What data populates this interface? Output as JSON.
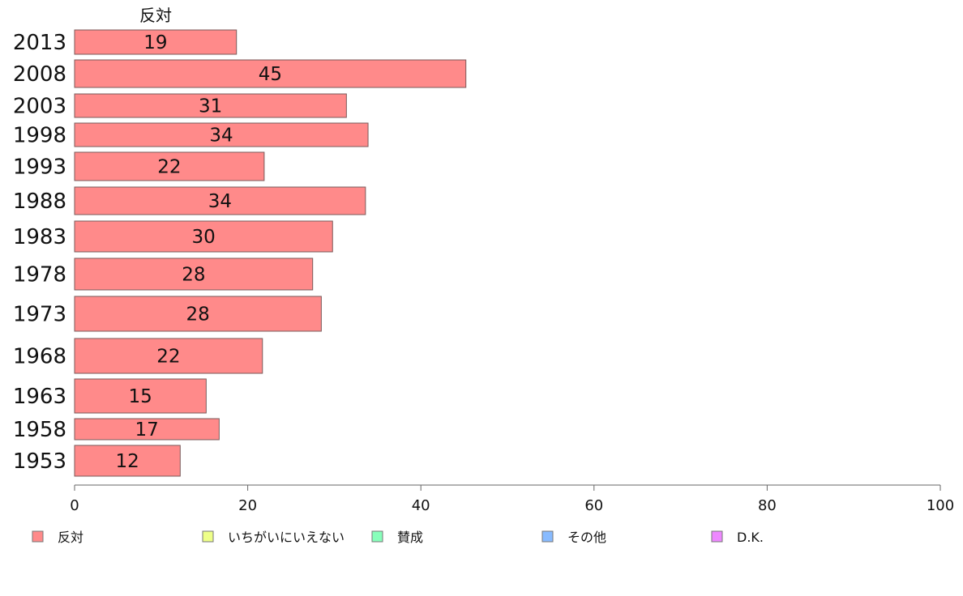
{
  "chart_data": {
    "type": "bar",
    "orientation": "horizontal",
    "series_title": "反対",
    "categories": [
      "2013",
      "2008",
      "2003",
      "1998",
      "1993",
      "1988",
      "1983",
      "1978",
      "1973",
      "1968",
      "1963",
      "1958",
      "1953"
    ],
    "values": [
      18.7,
      45.2,
      31.4,
      33.9,
      21.9,
      33.6,
      29.8,
      27.5,
      28.5,
      21.7,
      15.2,
      16.7,
      12.2
    ],
    "value_labels": [
      "19",
      "45",
      "31",
      "34",
      "22",
      "34",
      "30",
      "28",
      "28",
      "22",
      "15",
      "17",
      "12"
    ],
    "xlim": [
      0,
      100
    ],
    "x_ticks": [
      "0",
      "20",
      "40",
      "60",
      "80",
      "100"
    ],
    "bar_color": "#ff8a8a",
    "bar_border": "#7a5a5a",
    "grid": false,
    "legend_position": "bottom",
    "legend": [
      {
        "label": "反対",
        "color": "#ff8a8a"
      },
      {
        "label": "いちがいにいえない",
        "color": "#eeff88"
      },
      {
        "label": "賛成",
        "color": "#88ffbb"
      },
      {
        "label": "その他",
        "color": "#88bbff"
      },
      {
        "label": "D.K.",
        "color": "#ee88ff"
      }
    ]
  }
}
